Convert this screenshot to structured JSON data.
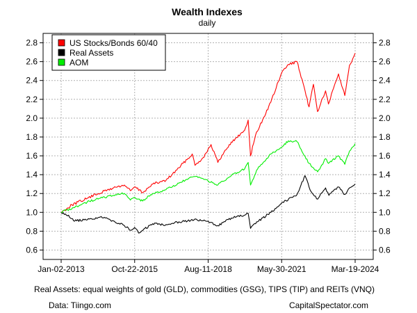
{
  "chart_data": {
    "type": "line",
    "title": "Wealth Indexes",
    "subtitle": "daily",
    "xlabel": "",
    "ylabel": "",
    "x_ticks": [
      "Jan-02-2013",
      "Oct-22-2015",
      "Aug-11-2018",
      "May-30-2021",
      "Mar-19-2024"
    ],
    "ylim": [
      0.5,
      2.9
    ],
    "y_ticks": [
      "0.6",
      "0.8",
      "1.0",
      "1.2",
      "1.4",
      "1.6",
      "1.8",
      "2.0",
      "2.2",
      "2.4",
      "2.6",
      "2.8"
    ],
    "grid": true,
    "legend_position": "top-left",
    "series": [
      {
        "name": "US Stocks/Bonds 60/40",
        "color": "#ff0000",
        "x": [
          "2013-01-02",
          "2013-06-01",
          "2014-01-01",
          "2014-06-01",
          "2015-01-01",
          "2015-06-01",
          "2015-08-24",
          "2015-10-22",
          "2016-02-11",
          "2016-07-01",
          "2017-01-01",
          "2017-06-01",
          "2018-01-01",
          "2018-02-09",
          "2018-06-01",
          "2018-09-20",
          "2018-12-24",
          "2019-06-01",
          "2019-12-31",
          "2020-02-19",
          "2020-03-23",
          "2020-06-01",
          "2020-12-31",
          "2021-05-30",
          "2021-09-02",
          "2021-12-31",
          "2022-06-16",
          "2022-08-16",
          "2022-10-12",
          "2023-02-01",
          "2023-03-13",
          "2023-07-31",
          "2023-10-27",
          "2023-12-31",
          "2024-03-19"
        ],
        "values": [
          1.0,
          1.08,
          1.15,
          1.2,
          1.26,
          1.29,
          1.23,
          1.27,
          1.21,
          1.3,
          1.34,
          1.45,
          1.62,
          1.5,
          1.58,
          1.72,
          1.53,
          1.72,
          1.87,
          1.98,
          1.6,
          1.82,
          2.17,
          2.48,
          2.57,
          2.6,
          2.12,
          2.36,
          2.07,
          2.29,
          2.15,
          2.47,
          2.24,
          2.56,
          2.69
        ]
      },
      {
        "name": "Real Assets",
        "color": "#000000",
        "x": [
          "2013-01-02",
          "2013-04-15",
          "2013-06-24",
          "2013-12-31",
          "2014-06-30",
          "2014-12-31",
          "2015-06-01",
          "2015-08-24",
          "2015-10-22",
          "2015-12-17",
          "2016-06-30",
          "2016-12-31",
          "2017-06-30",
          "2018-01-26",
          "2018-06-30",
          "2018-12-24",
          "2019-06-30",
          "2019-12-31",
          "2020-02-19",
          "2020-03-23",
          "2020-06-30",
          "2020-12-31",
          "2021-05-30",
          "2021-12-31",
          "2022-04-20",
          "2022-07-14",
          "2022-10-14",
          "2023-02-01",
          "2023-03-20",
          "2023-07-31",
          "2023-10-27",
          "2023-12-31",
          "2024-03-19"
        ],
        "values": [
          1.0,
          0.97,
          0.91,
          0.92,
          0.95,
          0.91,
          0.86,
          0.81,
          0.84,
          0.78,
          0.88,
          0.87,
          0.9,
          0.92,
          0.91,
          0.86,
          0.94,
          0.97,
          0.99,
          0.83,
          0.9,
          1.0,
          1.1,
          1.19,
          1.39,
          1.22,
          1.14,
          1.26,
          1.18,
          1.27,
          1.19,
          1.26,
          1.3
        ]
      },
      {
        "name": "AOM",
        "color": "#00ee00",
        "x": [
          "2013-01-02",
          "2013-06-24",
          "2013-12-31",
          "2014-06-30",
          "2014-12-31",
          "2015-06-01",
          "2015-08-24",
          "2015-10-22",
          "2016-02-11",
          "2016-06-30",
          "2016-12-31",
          "2017-06-30",
          "2018-01-26",
          "2018-06-30",
          "2018-12-24",
          "2019-06-30",
          "2019-12-31",
          "2020-02-19",
          "2020-03-23",
          "2020-06-30",
          "2020-12-31",
          "2021-05-30",
          "2021-09-02",
          "2021-12-31",
          "2022-06-16",
          "2022-10-14",
          "2023-02-01",
          "2023-03-13",
          "2023-07-31",
          "2023-10-27",
          "2023-12-31",
          "2024-03-19"
        ],
        "values": [
          1.0,
          1.05,
          1.11,
          1.15,
          1.18,
          1.2,
          1.13,
          1.16,
          1.12,
          1.2,
          1.24,
          1.31,
          1.38,
          1.35,
          1.29,
          1.39,
          1.46,
          1.53,
          1.29,
          1.46,
          1.62,
          1.69,
          1.76,
          1.75,
          1.52,
          1.43,
          1.57,
          1.52,
          1.6,
          1.51,
          1.65,
          1.73
        ]
      }
    ]
  },
  "footer": {
    "note": "Real Assets: equal weights of gold (GLD), commodities (GSG), TIPS (TIP) and REITs (VNQ)",
    "data_source": "Data: Tiingo.com",
    "credit": "CapitalSpectator.com"
  }
}
